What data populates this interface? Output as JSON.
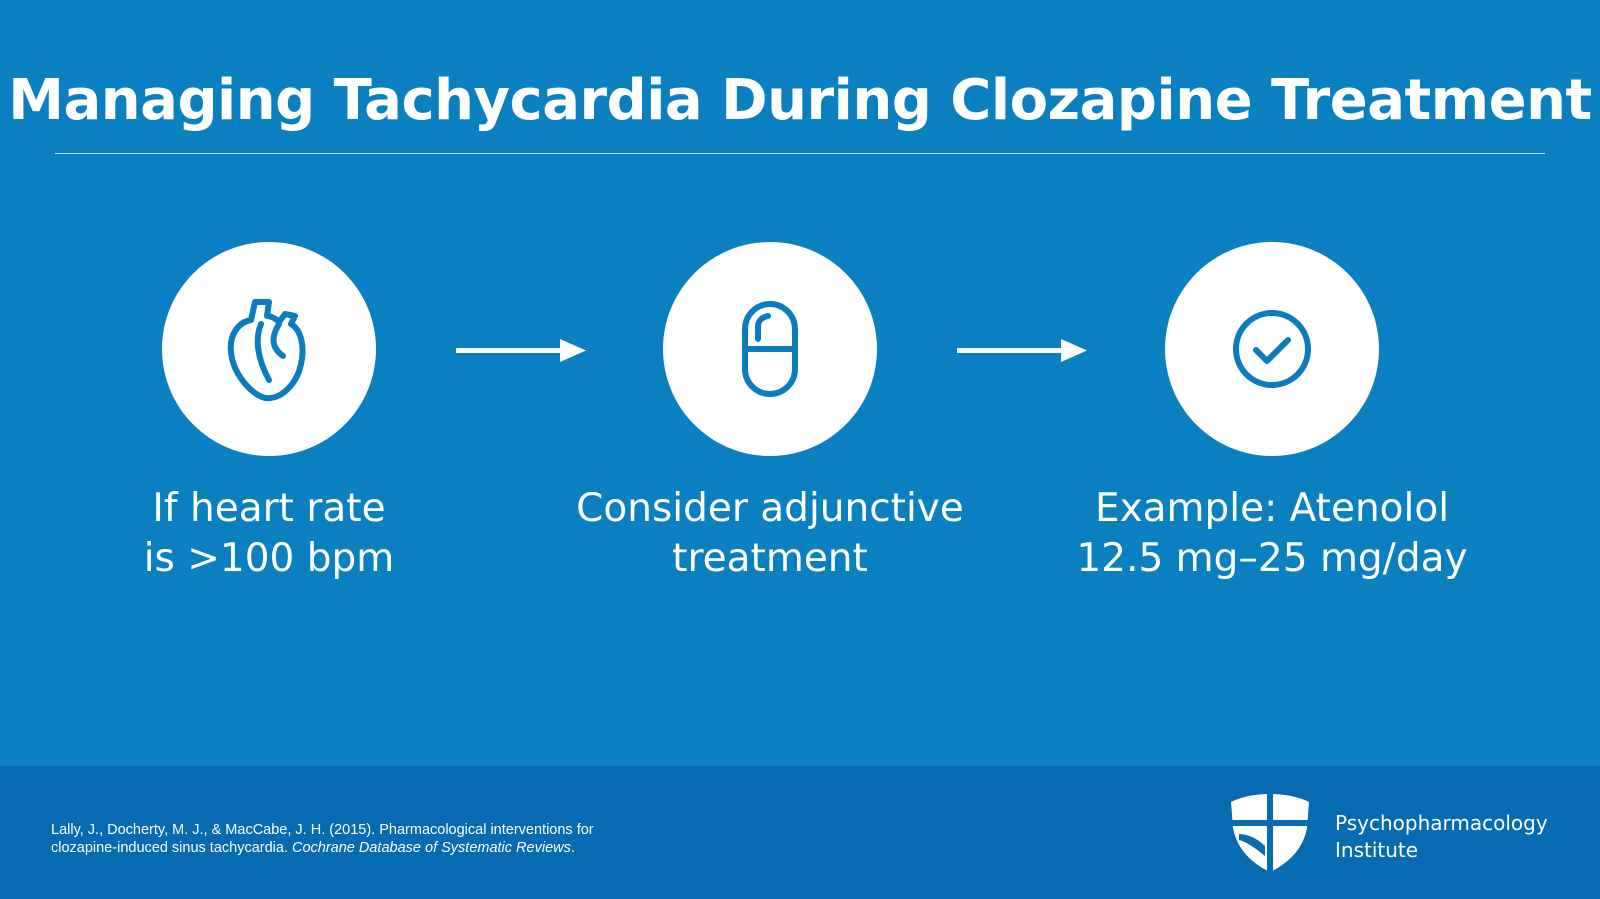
{
  "title": "Managing Tachycardia During Clozapine Treatment",
  "steps": [
    {
      "icon": "heart-icon",
      "line1": "If heart rate",
      "line2": "is >100 bpm"
    },
    {
      "icon": "pill-icon",
      "line1": "Consider adjunctive",
      "line2": "treatment"
    },
    {
      "icon": "checkmark-circle-icon",
      "line1": "Example: Atenolol",
      "line2": "12.5 mg–25 mg/day"
    }
  ],
  "arrows": [
    "arrow-right-icon",
    "arrow-right-icon"
  ],
  "citation": {
    "line1": "Lally, J., Docherty, M. J., & MacCabe, J. H. (2015). Pharmacological interventions for",
    "line2_plain": "clozapine-induced sinus tachycardia. ",
    "line2_italic": "Cochrane Database of Systematic Reviews",
    "line2_end": "."
  },
  "logo": {
    "icon": "shield-cross-icon",
    "line1": "Psychopharmacology",
    "line2": "Institute"
  },
  "colors": {
    "background": "#0a80c0",
    "footer": "#066bb0",
    "icon": "#0b7cc0",
    "text": "#ffffff"
  }
}
